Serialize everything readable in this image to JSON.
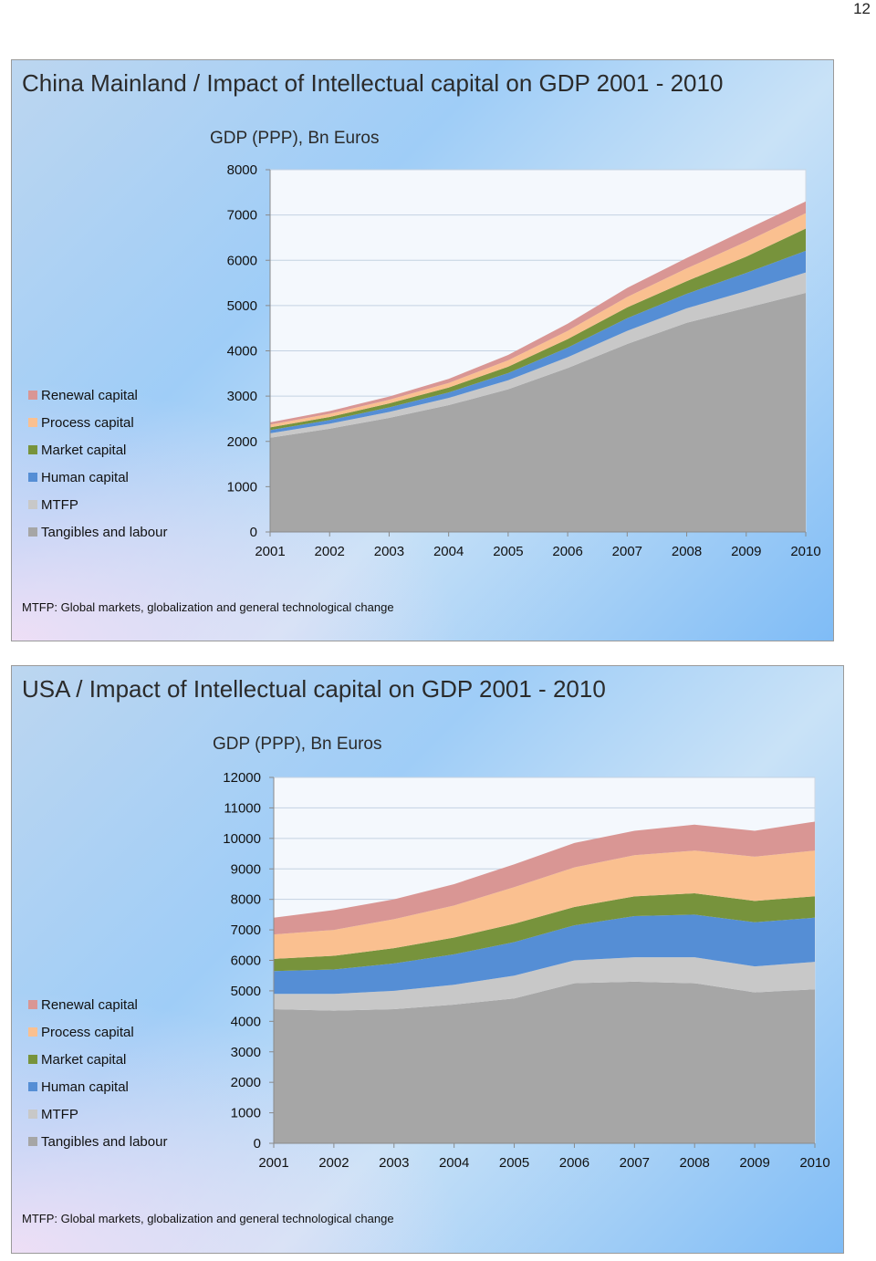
{
  "page_number": "12",
  "colors": {
    "Tangibles and labour": "#a6a6a6",
    "MTFP": "#c8c8c8",
    "Human capital": "#558ed5",
    "Market capital": "#77933c",
    "Process capital": "#fac090",
    "Renewal capital": "#d99694"
  },
  "slides": [
    {
      "title": "China Mainland / Impact of Intellectual capital on GDP 2001 - 2010",
      "chart_title": "GDP (PPP), Bn Euros",
      "legend": [
        "Renewal capital",
        "Process capital",
        "Market capital",
        "Human capital",
        "MTFP",
        "Tangibles and labour"
      ],
      "footnote": "MTFP: Global markets, globalization and general technological change"
    },
    {
      "title": "USA / Impact of Intellectual capital on GDP 2001 - 2010",
      "chart_title": "GDP (PPP), Bn Euros",
      "legend": [
        "Renewal capital",
        "Process capital",
        "Market capital",
        "Human capital",
        "MTFP",
        "Tangibles and labour"
      ],
      "footnote": "MTFP: Global markets, globalization and general technological change"
    }
  ],
  "chart_data": [
    {
      "type": "area",
      "stacked": true,
      "title": "GDP (PPP), Bn Euros",
      "x": [
        "2001",
        "2002",
        "2003",
        "2004",
        "2005",
        "2006",
        "2007",
        "2008",
        "2009",
        "2010"
      ],
      "ylim": [
        0,
        8000
      ],
      "yticks": [
        0,
        1000,
        2000,
        3000,
        4000,
        5000,
        6000,
        7000,
        8000
      ],
      "grid": true,
      "legend_position": "left",
      "series": [
        {
          "name": "Tangibles and labour",
          "values": [
            2080,
            2280,
            2520,
            2800,
            3150,
            3620,
            4150,
            4620,
            4950,
            5280
          ]
        },
        {
          "name": "MTFP",
          "values": [
            100,
            110,
            130,
            160,
            200,
            240,
            290,
            320,
            370,
            450
          ]
        },
        {
          "name": "Human capital",
          "values": [
            70,
            80,
            100,
            120,
            160,
            210,
            280,
            320,
            400,
            480
          ]
        },
        {
          "name": "Market capital",
          "values": [
            60,
            70,
            90,
            110,
            140,
            190,
            240,
            280,
            360,
            490
          ]
        },
        {
          "name": "Process capital",
          "values": [
            60,
            70,
            80,
            100,
            140,
            180,
            230,
            280,
            330,
            340
          ]
        },
        {
          "name": "Renewal capital",
          "values": [
            50,
            60,
            70,
            90,
            120,
            160,
            200,
            230,
            270,
            260
          ]
        }
      ]
    },
    {
      "type": "area",
      "stacked": true,
      "title": "GDP (PPP), Bn Euros",
      "x": [
        "2001",
        "2002",
        "2003",
        "2004",
        "2005",
        "2006",
        "2007",
        "2008",
        "2009",
        "2010"
      ],
      "ylim": [
        0,
        12000
      ],
      "yticks": [
        0,
        1000,
        2000,
        3000,
        4000,
        5000,
        6000,
        7000,
        8000,
        9000,
        10000,
        11000,
        12000
      ],
      "grid": true,
      "legend_position": "left",
      "series": [
        {
          "name": "Tangibles and labour",
          "values": [
            4400,
            4350,
            4400,
            4550,
            4750,
            5250,
            5300,
            5250,
            4950,
            5050
          ]
        },
        {
          "name": "MTFP",
          "values": [
            500,
            550,
            600,
            650,
            750,
            750,
            800,
            850,
            850,
            900
          ]
        },
        {
          "name": "Human capital",
          "values": [
            750,
            800,
            900,
            1000,
            1100,
            1150,
            1350,
            1400,
            1450,
            1450
          ]
        },
        {
          "name": "Market capital",
          "values": [
            400,
            450,
            500,
            550,
            600,
            600,
            650,
            700,
            700,
            700
          ]
        },
        {
          "name": "Process capital",
          "values": [
            800,
            850,
            950,
            1050,
            1200,
            1300,
            1350,
            1400,
            1450,
            1500
          ]
        },
        {
          "name": "Renewal capital",
          "values": [
            550,
            650,
            650,
            700,
            750,
            800,
            800,
            850,
            850,
            950
          ]
        }
      ]
    }
  ]
}
